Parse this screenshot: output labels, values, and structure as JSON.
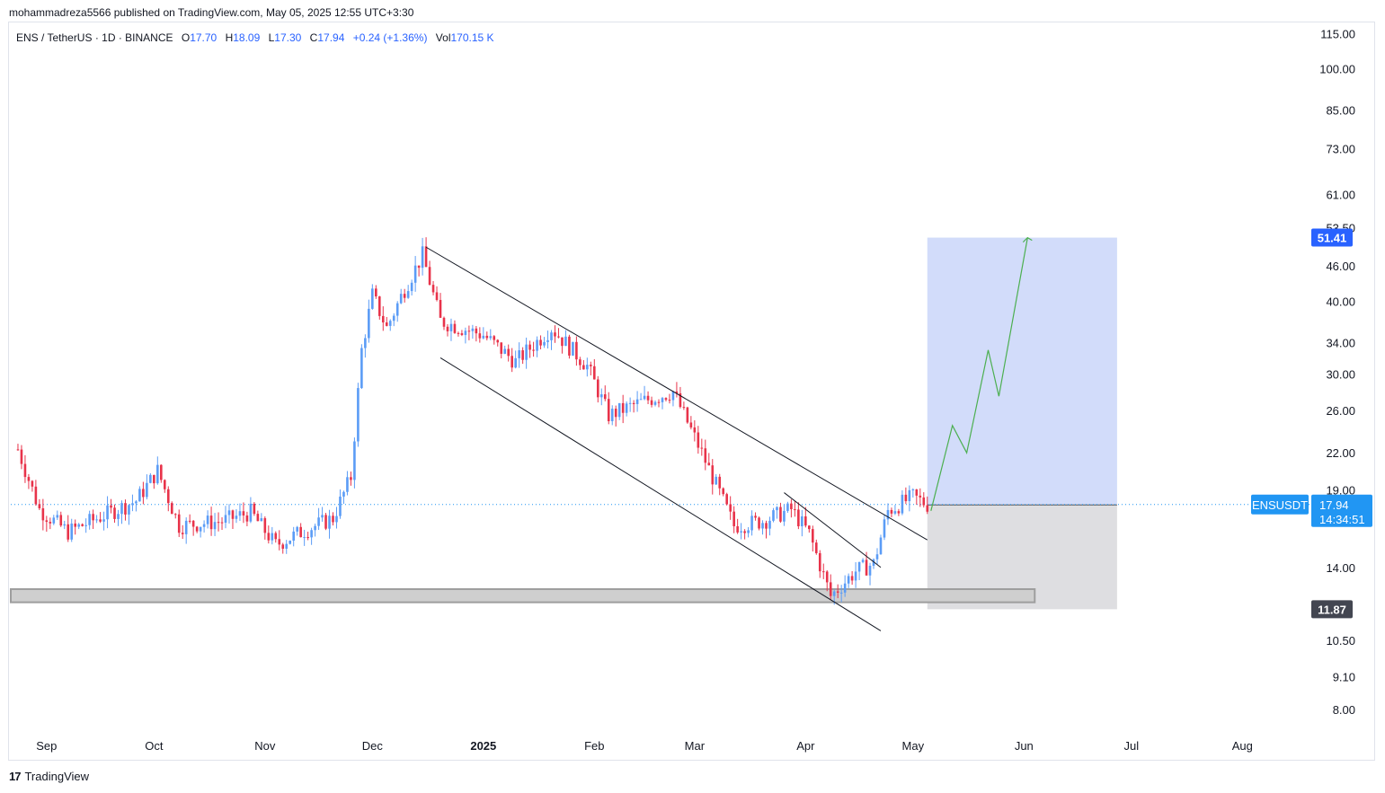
{
  "header": {
    "published_text": "mohammadreza5566 published on TradingView.com, May 05, 2025 12:55 UTC+3:30"
  },
  "legend": {
    "symbol": "ENS / TetherUS · 1D · BINANCE",
    "open_label": "O",
    "open": "17.70",
    "high_label": "H",
    "high": "18.09",
    "low_label": "L",
    "low": "17.30",
    "close_label": "C",
    "close": "17.94",
    "change": "+0.24 (+1.36%)",
    "vol_label": "Vol",
    "vol": "170.15 K"
  },
  "price_axis": {
    "ticks": [
      "115.00",
      "100.00",
      "85.00",
      "73.00",
      "61.00",
      "53.50",
      "46.00",
      "40.00",
      "34.00",
      "30.00",
      "26.00",
      "22.00",
      "19.00",
      "14.00",
      "10.50",
      "9.10",
      "8.00"
    ],
    "symbol_badge": "ENSUSDT",
    "current_price": "17.94",
    "countdown": "14:34:51",
    "target_price": "51.41",
    "entry_price": "17.91",
    "stop_price": "11.87"
  },
  "time_axis": {
    "ticks": [
      "Sep",
      "Oct",
      "Nov",
      "Dec",
      "2025",
      "Feb",
      "Mar",
      "Apr",
      "May",
      "Jun",
      "Jul",
      "Aug"
    ]
  },
  "footer": {
    "logo_mark": "17",
    "brand": "TradingView"
  },
  "colors": {
    "up": "#5b9cf6",
    "down": "#e8334a",
    "target_zone": "#d2dcfa",
    "stop_zone": "#dedee1",
    "support_zone": "#cfcfcf",
    "projection": "#4caf50",
    "price_line": "#2196f3"
  },
  "chart_data": {
    "type": "candlestick",
    "symbol": "ENSUSDT",
    "interval": "1D",
    "y_scale": "log",
    "y_range": [
      7.5,
      118
    ],
    "x_range": [
      "2024-08-22",
      "2025-08-20"
    ],
    "price_path": [
      {
        "date": "2024-08-24",
        "price": 22.3
      },
      {
        "date": "2024-08-30",
        "price": 17.6
      },
      {
        "date": "2024-09-07",
        "price": 16.1
      },
      {
        "date": "2024-09-17",
        "price": 17.2
      },
      {
        "date": "2024-09-26",
        "price": 18.2
      },
      {
        "date": "2024-10-02",
        "price": 20.5
      },
      {
        "date": "2024-10-08",
        "price": 16.5
      },
      {
        "date": "2024-10-20",
        "price": 16.8
      },
      {
        "date": "2024-10-28",
        "price": 17.4
      },
      {
        "date": "2024-11-04",
        "price": 15.3
      },
      {
        "date": "2024-11-12",
        "price": 16.2
      },
      {
        "date": "2024-11-20",
        "price": 17.0
      },
      {
        "date": "2024-11-25",
        "price": 20.0
      },
      {
        "date": "2024-11-28",
        "price": 33.0
      },
      {
        "date": "2024-12-01",
        "price": 41.0
      },
      {
        "date": "2024-12-05",
        "price": 36.0
      },
      {
        "date": "2024-12-10",
        "price": 42.0
      },
      {
        "date": "2024-12-15",
        "price": 48.0
      },
      {
        "date": "2024-12-20",
        "price": 37.0
      },
      {
        "date": "2025-01-01",
        "price": 35.0
      },
      {
        "date": "2025-01-10",
        "price": 31.5
      },
      {
        "date": "2025-01-20",
        "price": 36.0
      },
      {
        "date": "2025-01-30",
        "price": 31.0
      },
      {
        "date": "2025-02-05",
        "price": 25.5
      },
      {
        "date": "2025-02-15",
        "price": 27.0
      },
      {
        "date": "2025-02-23",
        "price": 28.0
      },
      {
        "date": "2025-03-03",
        "price": 22.0
      },
      {
        "date": "2025-03-12",
        "price": 16.5
      },
      {
        "date": "2025-03-20",
        "price": 16.8
      },
      {
        "date": "2025-03-28",
        "price": 17.6
      },
      {
        "date": "2025-04-02",
        "price": 16.0
      },
      {
        "date": "2025-04-08",
        "price": 12.5
      },
      {
        "date": "2025-04-15",
        "price": 13.8
      },
      {
        "date": "2025-04-20",
        "price": 14.2
      },
      {
        "date": "2025-04-24",
        "price": 17.5
      },
      {
        "date": "2025-05-01",
        "price": 18.5
      },
      {
        "date": "2025-05-05",
        "price": 17.94
      }
    ],
    "target_zone": {
      "from": "2025-05-05",
      "to": "2025-06-27",
      "low": 17.91,
      "high": 51.41
    },
    "stop_zone": {
      "from": "2025-05-05",
      "to": "2025-06-27",
      "low": 11.87,
      "high": 17.91
    },
    "support_zone": {
      "from": "2024-08-22",
      "to": "2025-06-04",
      "low": 12.2,
      "high": 12.85
    },
    "trendlines": [
      {
        "from": {
          "date": "2024-12-16",
          "price": 49.5
        },
        "to": {
          "date": "2025-05-05",
          "price": 15.6
        }
      },
      {
        "from": {
          "date": "2024-12-20",
          "price": 32.0
        },
        "to": {
          "date": "2025-04-22",
          "price": 10.9
        }
      },
      {
        "from": {
          "date": "2025-03-26",
          "price": 18.8
        },
        "to": {
          "date": "2025-04-22",
          "price": 14.0
        }
      }
    ],
    "projection": [
      {
        "date": "2025-05-06",
        "price": 17.5
      },
      {
        "date": "2025-05-12",
        "price": 24.5
      },
      {
        "date": "2025-05-16",
        "price": 22.0
      },
      {
        "date": "2025-05-22",
        "price": 33.0
      },
      {
        "date": "2025-05-25",
        "price": 27.5
      },
      {
        "date": "2025-06-02",
        "price": 51.4
      }
    ]
  }
}
